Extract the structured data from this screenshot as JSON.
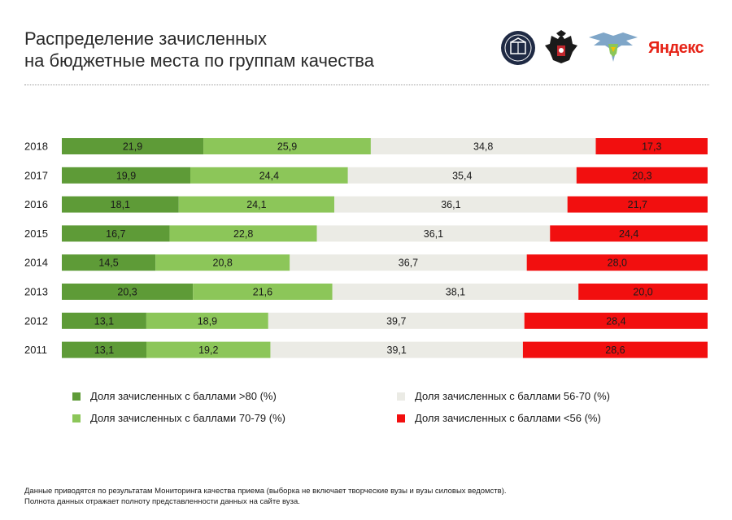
{
  "title": {
    "line1": "Распределение зачисленных",
    "line2": "на бюджетные места по группам качества"
  },
  "logos": {
    "items": [
      "hse-logo",
      "russian-coat-of-arms-logo",
      "ministry-eagle-logo"
    ],
    "yandex": "Яндекс",
    "brand_color": "#e62317"
  },
  "chart_data": {
    "type": "bar",
    "orientation": "horizontal",
    "stacked": true,
    "normalized": true,
    "categories": [
      "2018",
      "2017",
      "2016",
      "2015",
      "2014",
      "2013",
      "2012",
      "2011"
    ],
    "series": [
      {
        "name": "Доля зачисленных с баллами >80 (%)",
        "color": "#5e9b37",
        "values": [
          21.9,
          19.9,
          18.1,
          16.7,
          14.5,
          20.3,
          13.1,
          13.1
        ],
        "labels": [
          "21,9",
          "19,9",
          "18,1",
          "16,7",
          "14,5",
          "20,3",
          "13,1",
          "13,1"
        ]
      },
      {
        "name": "Доля зачисленных с баллами 70-79 (%)",
        "color": "#8cc659",
        "values": [
          25.9,
          24.4,
          24.1,
          22.8,
          20.8,
          21.6,
          18.9,
          19.2
        ],
        "labels": [
          "25,9",
          "24,4",
          "24,1",
          "22,8",
          "20,8",
          "21,6",
          "18,9",
          "19,2"
        ]
      },
      {
        "name": "Доля зачисленных с баллами 56-70 (%)",
        "color": "#ebebe5",
        "values": [
          34.8,
          35.4,
          36.1,
          36.1,
          36.7,
          38.1,
          39.7,
          39.1
        ],
        "labels": [
          "34,8",
          "35,4",
          "36,1",
          "36,1",
          "36,7",
          "38,1",
          "39,7",
          "39,1"
        ]
      },
      {
        "name": "Доля зачисленных с баллами <56 (%)",
        "color": "#f20f0f",
        "values": [
          17.3,
          20.3,
          21.7,
          24.4,
          28.0,
          20.0,
          28.4,
          28.6
        ],
        "labels": [
          "17,3",
          "20,3",
          "21,7",
          "24,4",
          "28,0",
          "20,0",
          "28,4",
          "28,6"
        ]
      }
    ],
    "legend_position": "bottom",
    "grid": false
  },
  "footer": {
    "line1": "Данные приводятся по результатам Мониторинга качества приема (выборка не включает творческие вузы и вузы силовых ведомств).",
    "line2": "Полнота данных отражает полноту представленности данных на сайте вуза."
  }
}
